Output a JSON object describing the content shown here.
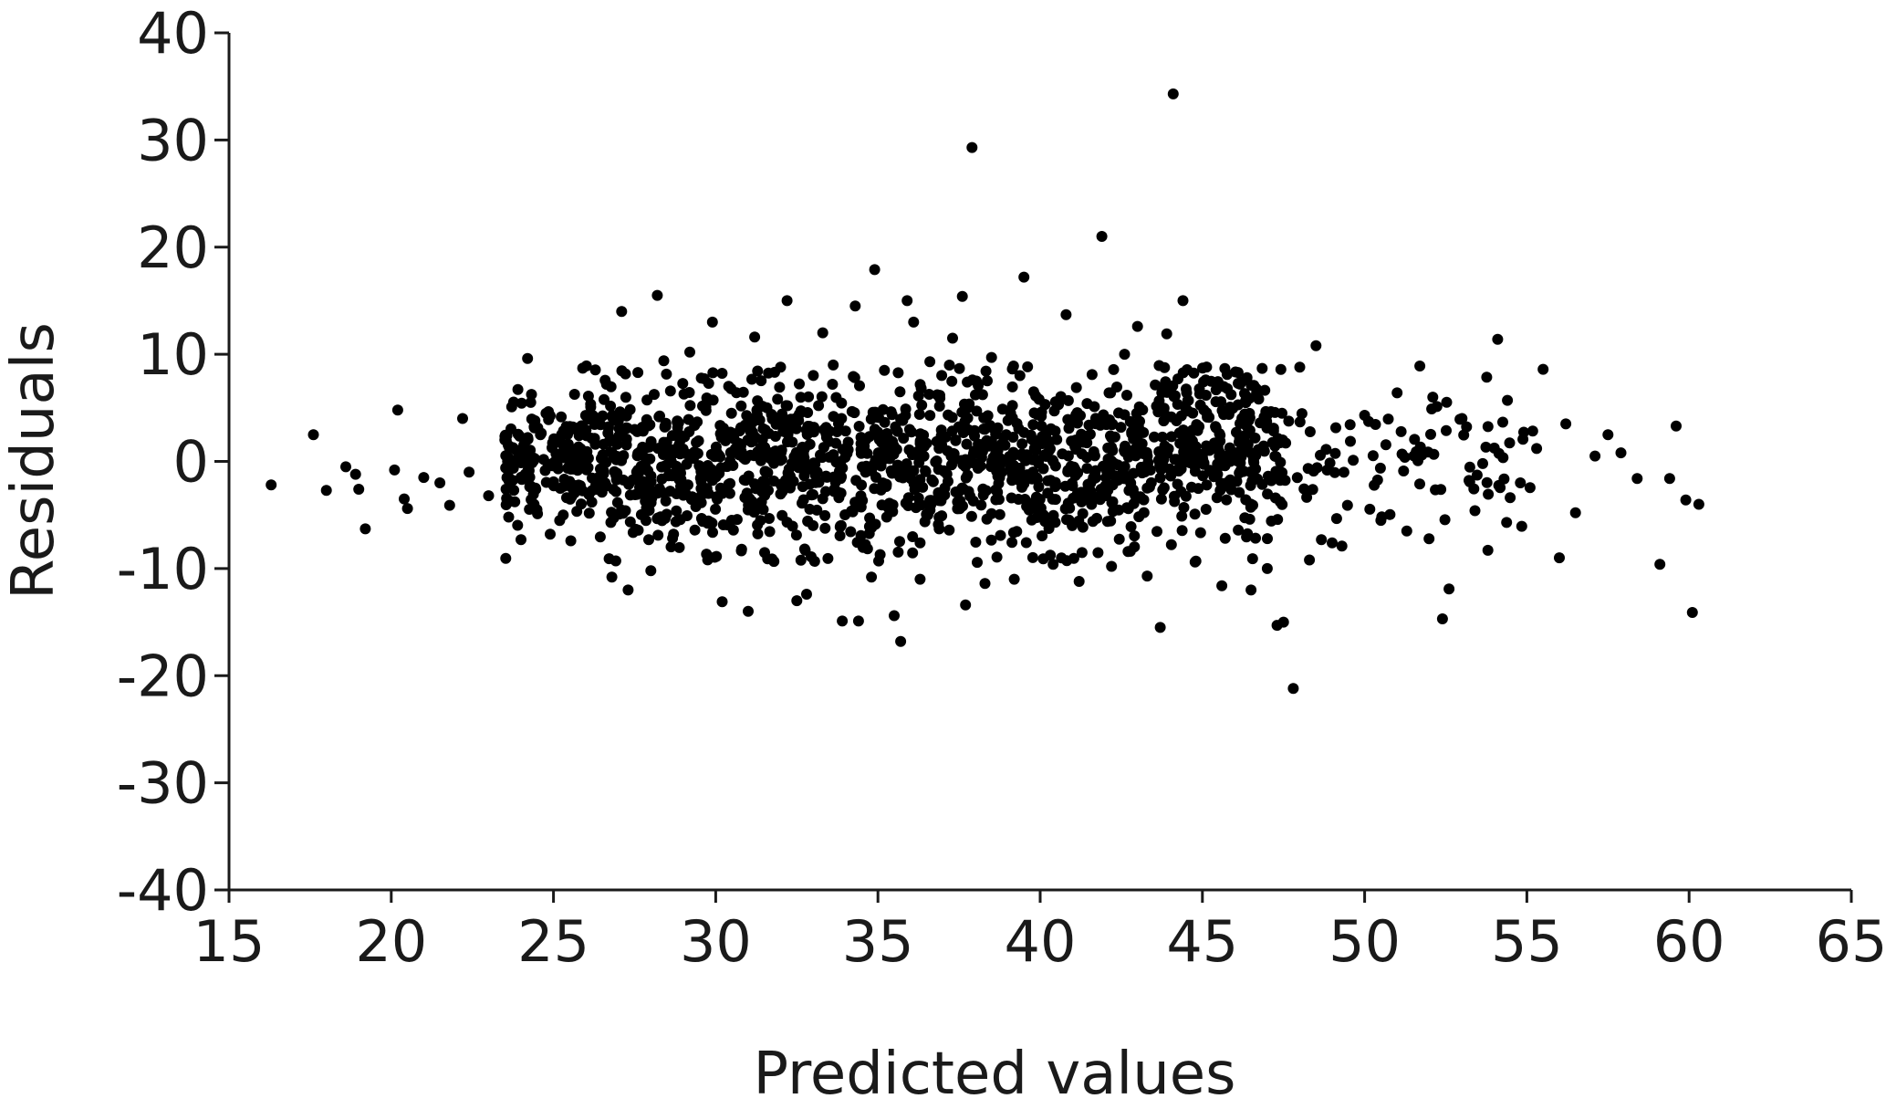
{
  "chart_data": {
    "type": "scatter",
    "title": "",
    "xlabel": "Predicted values",
    "ylabel": "Residuals",
    "xlim": [
      15,
      65
    ],
    "ylim": [
      -40,
      40
    ],
    "x_ticks": [
      15,
      20,
      25,
      30,
      35,
      40,
      45,
      50,
      55,
      60,
      65
    ],
    "y_ticks": [
      40,
      30,
      20,
      10,
      0,
      -10,
      -20,
      -30,
      -40
    ],
    "x_tick_labels": [
      "15",
      "20",
      "25",
      "30",
      "35",
      "40",
      "45",
      "50",
      "55",
      "60",
      "65"
    ],
    "y_tick_labels": [
      "40",
      "30",
      "20",
      "10",
      "0",
      "-10",
      "-20",
      "-30",
      "-40"
    ],
    "grid": false,
    "legend": "none",
    "point_color": "#000000",
    "series": [
      {
        "points": [
          [
            16.3,
            -2.2
          ],
          [
            17.6,
            2.5
          ],
          [
            18.0,
            -2.7
          ],
          [
            18.6,
            -0.5
          ],
          [
            18.9,
            -1.2
          ],
          [
            19.0,
            -2.6
          ],
          [
            19.2,
            -6.3
          ],
          [
            20.1,
            -0.8
          ],
          [
            20.2,
            4.8
          ],
          [
            20.4,
            -3.5
          ],
          [
            20.5,
            -4.4
          ],
          [
            21.0,
            -1.5
          ],
          [
            21.5,
            -2.0
          ],
          [
            21.8,
            -4.1
          ],
          [
            22.2,
            4.0
          ],
          [
            22.4,
            -1.0
          ],
          [
            23.0,
            -3.2
          ],
          [
            23.5,
            2.0
          ],
          [
            24.0,
            -7.3
          ],
          [
            24.2,
            9.6
          ],
          [
            24.3,
            5.5
          ],
          [
            24.4,
            -4.0
          ],
          [
            24.9,
            -6.8
          ],
          [
            25.3,
            -5.0
          ],
          [
            25.9,
            8.7
          ],
          [
            26.4,
            -2.0
          ],
          [
            26.8,
            -10.8
          ],
          [
            27.1,
            14.0
          ],
          [
            27.3,
            -12.0
          ],
          [
            27.6,
            8.3
          ],
          [
            28.0,
            -10.2
          ],
          [
            28.2,
            15.5
          ],
          [
            28.4,
            9.4
          ],
          [
            28.7,
            -6.8
          ],
          [
            29.2,
            10.2
          ],
          [
            29.6,
            -5.6
          ],
          [
            29.9,
            13.0
          ],
          [
            30.2,
            -13.1
          ],
          [
            30.4,
            7.0
          ],
          [
            30.8,
            -8.2
          ],
          [
            31.0,
            -14.0
          ],
          [
            31.2,
            11.6
          ],
          [
            31.6,
            -9.1
          ],
          [
            32.0,
            8.8
          ],
          [
            32.2,
            15.0
          ],
          [
            32.5,
            -13.0
          ],
          [
            32.8,
            -12.4
          ],
          [
            33.0,
            -6.0
          ],
          [
            33.3,
            12.0
          ],
          [
            33.6,
            7.2
          ],
          [
            33.9,
            -14.9
          ],
          [
            34.3,
            14.5
          ],
          [
            34.4,
            -14.9
          ],
          [
            34.8,
            -10.8
          ],
          [
            34.9,
            17.9
          ],
          [
            35.2,
            8.5
          ],
          [
            35.5,
            -14.4
          ],
          [
            35.7,
            -16.8
          ],
          [
            35.9,
            15.0
          ],
          [
            36.1,
            13.0
          ],
          [
            36.3,
            -11.0
          ],
          [
            36.6,
            9.3
          ],
          [
            37.3,
            11.5
          ],
          [
            37.6,
            15.4
          ],
          [
            37.7,
            -13.4
          ],
          [
            37.9,
            29.3
          ],
          [
            38.3,
            -11.4
          ],
          [
            38.5,
            9.7
          ],
          [
            39.2,
            -11.0
          ],
          [
            39.5,
            17.2
          ],
          [
            39.8,
            6.5
          ],
          [
            40.4,
            -9.6
          ],
          [
            40.8,
            13.7
          ],
          [
            41.2,
            -11.2
          ],
          [
            41.6,
            8.1
          ],
          [
            41.9,
            21.0
          ],
          [
            42.2,
            -9.8
          ],
          [
            42.6,
            10.0
          ],
          [
            43.0,
            12.6
          ],
          [
            43.3,
            -10.7
          ],
          [
            43.7,
            -15.5
          ],
          [
            43.9,
            11.9
          ],
          [
            44.1,
            34.3
          ],
          [
            44.4,
            15.0
          ],
          [
            44.8,
            -9.3
          ],
          [
            45.1,
            7.6
          ],
          [
            45.6,
            -11.6
          ],
          [
            46.1,
            8.3
          ],
          [
            46.5,
            -12.0
          ],
          [
            47.0,
            -10.0
          ],
          [
            47.3,
            -15.3
          ],
          [
            47.5,
            -15.0
          ],
          [
            47.8,
            -21.2
          ],
          [
            48.0,
            8.8
          ],
          [
            48.3,
            -9.2
          ],
          [
            48.5,
            10.8
          ],
          [
            49.0,
            -7.6
          ],
          [
            49.3,
            -7.9
          ],
          [
            50.0,
            4.3
          ],
          [
            50.5,
            -5.5
          ],
          [
            51.0,
            6.4
          ],
          [
            51.3,
            -6.5
          ],
          [
            51.7,
            8.9
          ],
          [
            52.1,
            6.0
          ],
          [
            52.4,
            -14.7
          ],
          [
            52.6,
            -11.9
          ],
          [
            53.0,
            4.0
          ],
          [
            53.4,
            -4.6
          ],
          [
            53.8,
            -8.3
          ],
          [
            54.1,
            11.4
          ],
          [
            54.4,
            5.7
          ],
          [
            54.8,
            -2.0
          ],
          [
            55.3,
            1.2
          ],
          [
            55.5,
            8.6
          ],
          [
            56.0,
            -9.0
          ],
          [
            56.2,
            3.5
          ],
          [
            56.5,
            -4.8
          ],
          [
            57.1,
            0.5
          ],
          [
            57.5,
            2.5
          ],
          [
            57.9,
            0.8
          ],
          [
            58.4,
            -1.6
          ],
          [
            59.1,
            -9.6
          ],
          [
            59.4,
            -1.6
          ],
          [
            59.6,
            3.3
          ],
          [
            59.9,
            -3.6
          ],
          [
            60.1,
            -14.1
          ],
          [
            60.3,
            -4.0
          ]
        ]
      }
    ],
    "dense_cloud": {
      "x_range": [
        23.5,
        55.5
      ],
      "center_residual": 0.0,
      "typical_spread": 4.0
    }
  }
}
